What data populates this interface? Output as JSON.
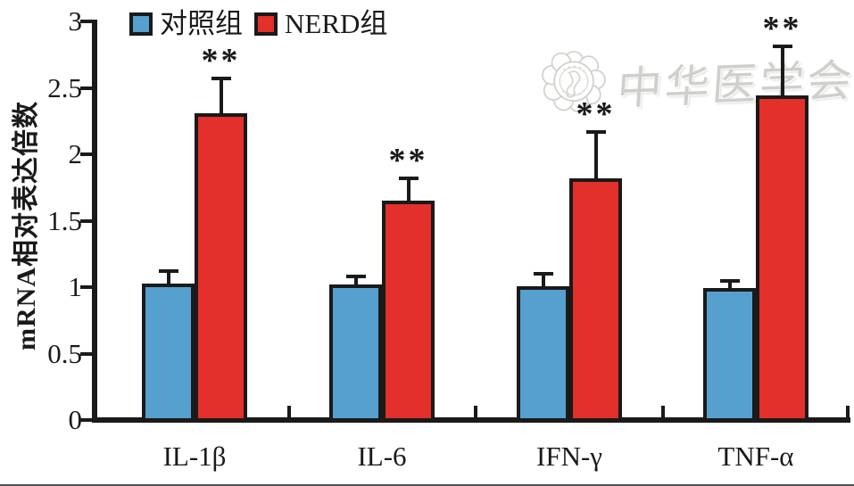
{
  "figure": {
    "background": "#ffffff",
    "axis_color": "#1a1a1a",
    "bottom_rule_color": "#30343a"
  },
  "legend": {
    "items": [
      {
        "label": "对照组",
        "color": "#55A0CE",
        "icon": "blue-square-swatch"
      },
      {
        "label": "NERD组",
        "color": "#E3302A",
        "icon": "red-square-swatch"
      }
    ]
  },
  "watermark": {
    "logo": "chinese-medical-association-seal",
    "text": "中华医学会",
    "color": "#c7c7c2"
  },
  "chart_data": {
    "type": "bar",
    "title": "",
    "xlabel": "",
    "ylabel": "mRNA相对表达倍数",
    "categories": [
      "IL-1β",
      "IL-6",
      "IFN-γ",
      "TNF-α"
    ],
    "series": [
      {
        "name": "对照组",
        "color": "#55A0CE",
        "values": [
          1.03,
          1.02,
          1.01,
          0.99
        ],
        "errors_plus": [
          0.09,
          0.06,
          0.09,
          0.06
        ]
      },
      {
        "name": "NERD组",
        "color": "#E3302A",
        "values": [
          2.31,
          1.65,
          1.82,
          2.44
        ],
        "errors_plus": [
          0.26,
          0.17,
          0.35,
          0.37
        ],
        "significance": [
          "**",
          "**",
          "**",
          "**"
        ]
      }
    ],
    "ylim": [
      0,
      3
    ],
    "yticks": [
      0,
      0.5,
      1,
      1.5,
      2,
      2.5,
      3
    ],
    "ytick_labels": [
      "0",
      "0.5",
      "1",
      "1.5",
      "2",
      "2.5",
      "3"
    ],
    "error_bars": "upper only, capped",
    "grid": false,
    "legend_position": "top inside"
  }
}
